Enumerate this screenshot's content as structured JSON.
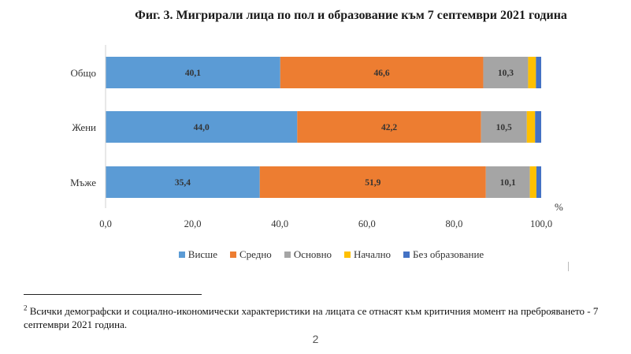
{
  "figure": {
    "title": "Фиг. 3. Мигрирали лица по пол и образование към 7 септември 2021 година",
    "unit_label": "%"
  },
  "chart_data": {
    "type": "bar",
    "orientation": "horizontal",
    "stacked": true,
    "title": "Фиг. 3. Мигрирали лица по пол и образование към 7 септември 2021 година",
    "categories": [
      "Общо",
      "Жени",
      "Мъже"
    ],
    "series": [
      {
        "name": "Висше",
        "color": "#5B9BD5",
        "values": [
          40.1,
          44.0,
          35.4
        ],
        "labels": [
          "40,1",
          "44,0",
          "35,4"
        ]
      },
      {
        "name": "Средно",
        "color": "#ED7D31",
        "values": [
          46.6,
          42.2,
          51.9
        ],
        "labels": [
          "46,6",
          "42,2",
          "51,9"
        ]
      },
      {
        "name": "Основно",
        "color": "#A5A5A5",
        "values": [
          10.3,
          10.5,
          10.1
        ],
        "labels": [
          "10,3",
          "10,5",
          "10,1"
        ]
      },
      {
        "name": "Начално",
        "color": "#FFC000",
        "values": [
          1.8,
          1.9,
          1.5
        ],
        "labels": [
          "",
          "",
          ""
        ]
      },
      {
        "name": "Без образование",
        "color": "#4472C4",
        "values": [
          1.2,
          1.4,
          1.1
        ],
        "labels": [
          "",
          "",
          ""
        ]
      }
    ],
    "xlim": [
      0,
      100
    ],
    "xticks": [
      "0,0",
      "20,0",
      "40,0",
      "60,0",
      "80,0",
      "100,0"
    ],
    "xtick_values": [
      0,
      20,
      40,
      60,
      80,
      100
    ],
    "xlabel": "%",
    "ylabel": "",
    "grid": false,
    "legend_position": "bottom"
  },
  "footnote": {
    "marker": "2",
    "text": "Всички демографски и социално-икономически характеристики на лицата се отнасят към критичния момент на преброяването - 7 септември 2021 година."
  },
  "page": {
    "number": "2"
  }
}
